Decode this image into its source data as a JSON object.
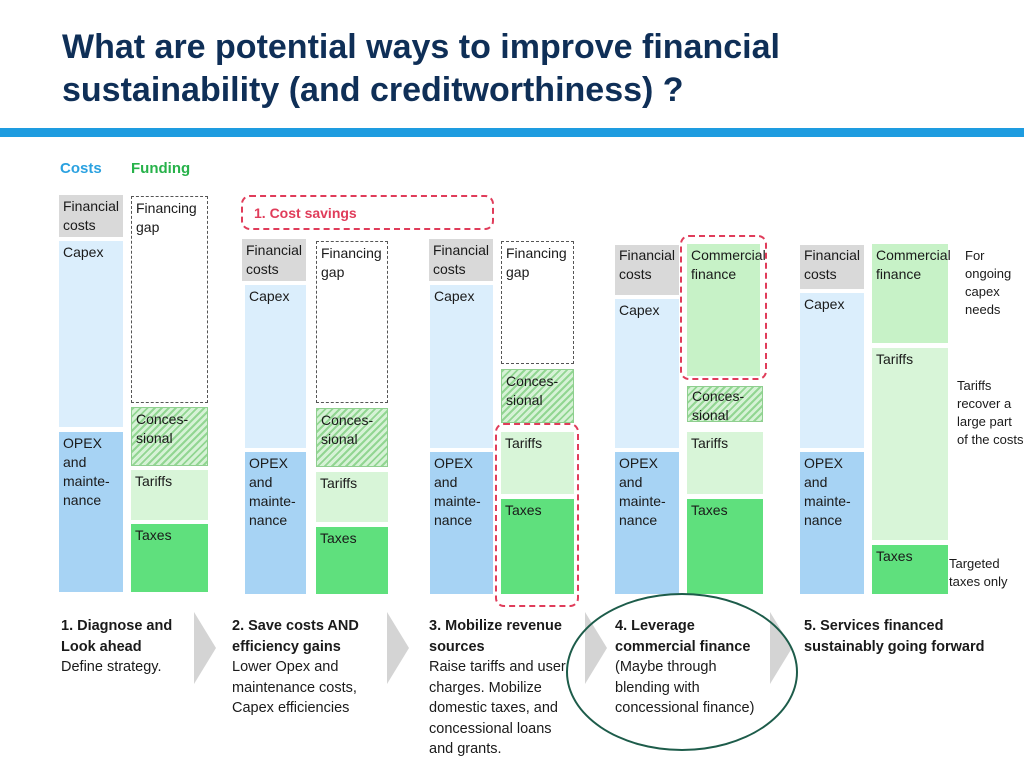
{
  "title": "What are potential ways to improve financial sustainability (and creditworthiness) ?",
  "legend": {
    "costs": "Costs",
    "funding": "Funding"
  },
  "colors": {
    "costs": "#2aa1e0",
    "funding": "#27b24a",
    "accent_red": "#e03c5a",
    "circle": "#1d5c4a",
    "title": "#0f2f57"
  },
  "labels": {
    "financial_costs": "Financial\ncosts",
    "financing_gap": "Financing\ngap",
    "capex": "Capex",
    "opex": "OPEX\nand\nmainte-\nnance",
    "concessional": "Conces-\nsional",
    "tariffs": "Tariffs",
    "taxes": "Taxes",
    "commercial_finance": "Commercial\nfinance"
  },
  "cost_savings_label": "1. Cost savings",
  "side_notes": {
    "capex_needs": "For\nongoing\ncapex\nneeds",
    "tariffs_recover": "Tariffs\nrecover a\nlarge part\nof the costs",
    "targeted_taxes": "Targeted\ntaxes only"
  },
  "steps": [
    {
      "title": "1. Diagnose and Look ahead",
      "text": "Define strategy."
    },
    {
      "title": "2. Save costs AND efficiency gains",
      "text": "Lower Opex and maintenance costs, Capex efficiencies"
    },
    {
      "title": "3. Mobilize revenue sources",
      "text": "Raise tariffs and user charges. Mobilize domestic taxes, and concessional loans and grants."
    },
    {
      "title": "4. Leverage commercial finance",
      "text": "(Maybe through blending with concessional finance)"
    },
    {
      "title": "5. Services financed sustainably going forward",
      "text": ""
    }
  ]
}
